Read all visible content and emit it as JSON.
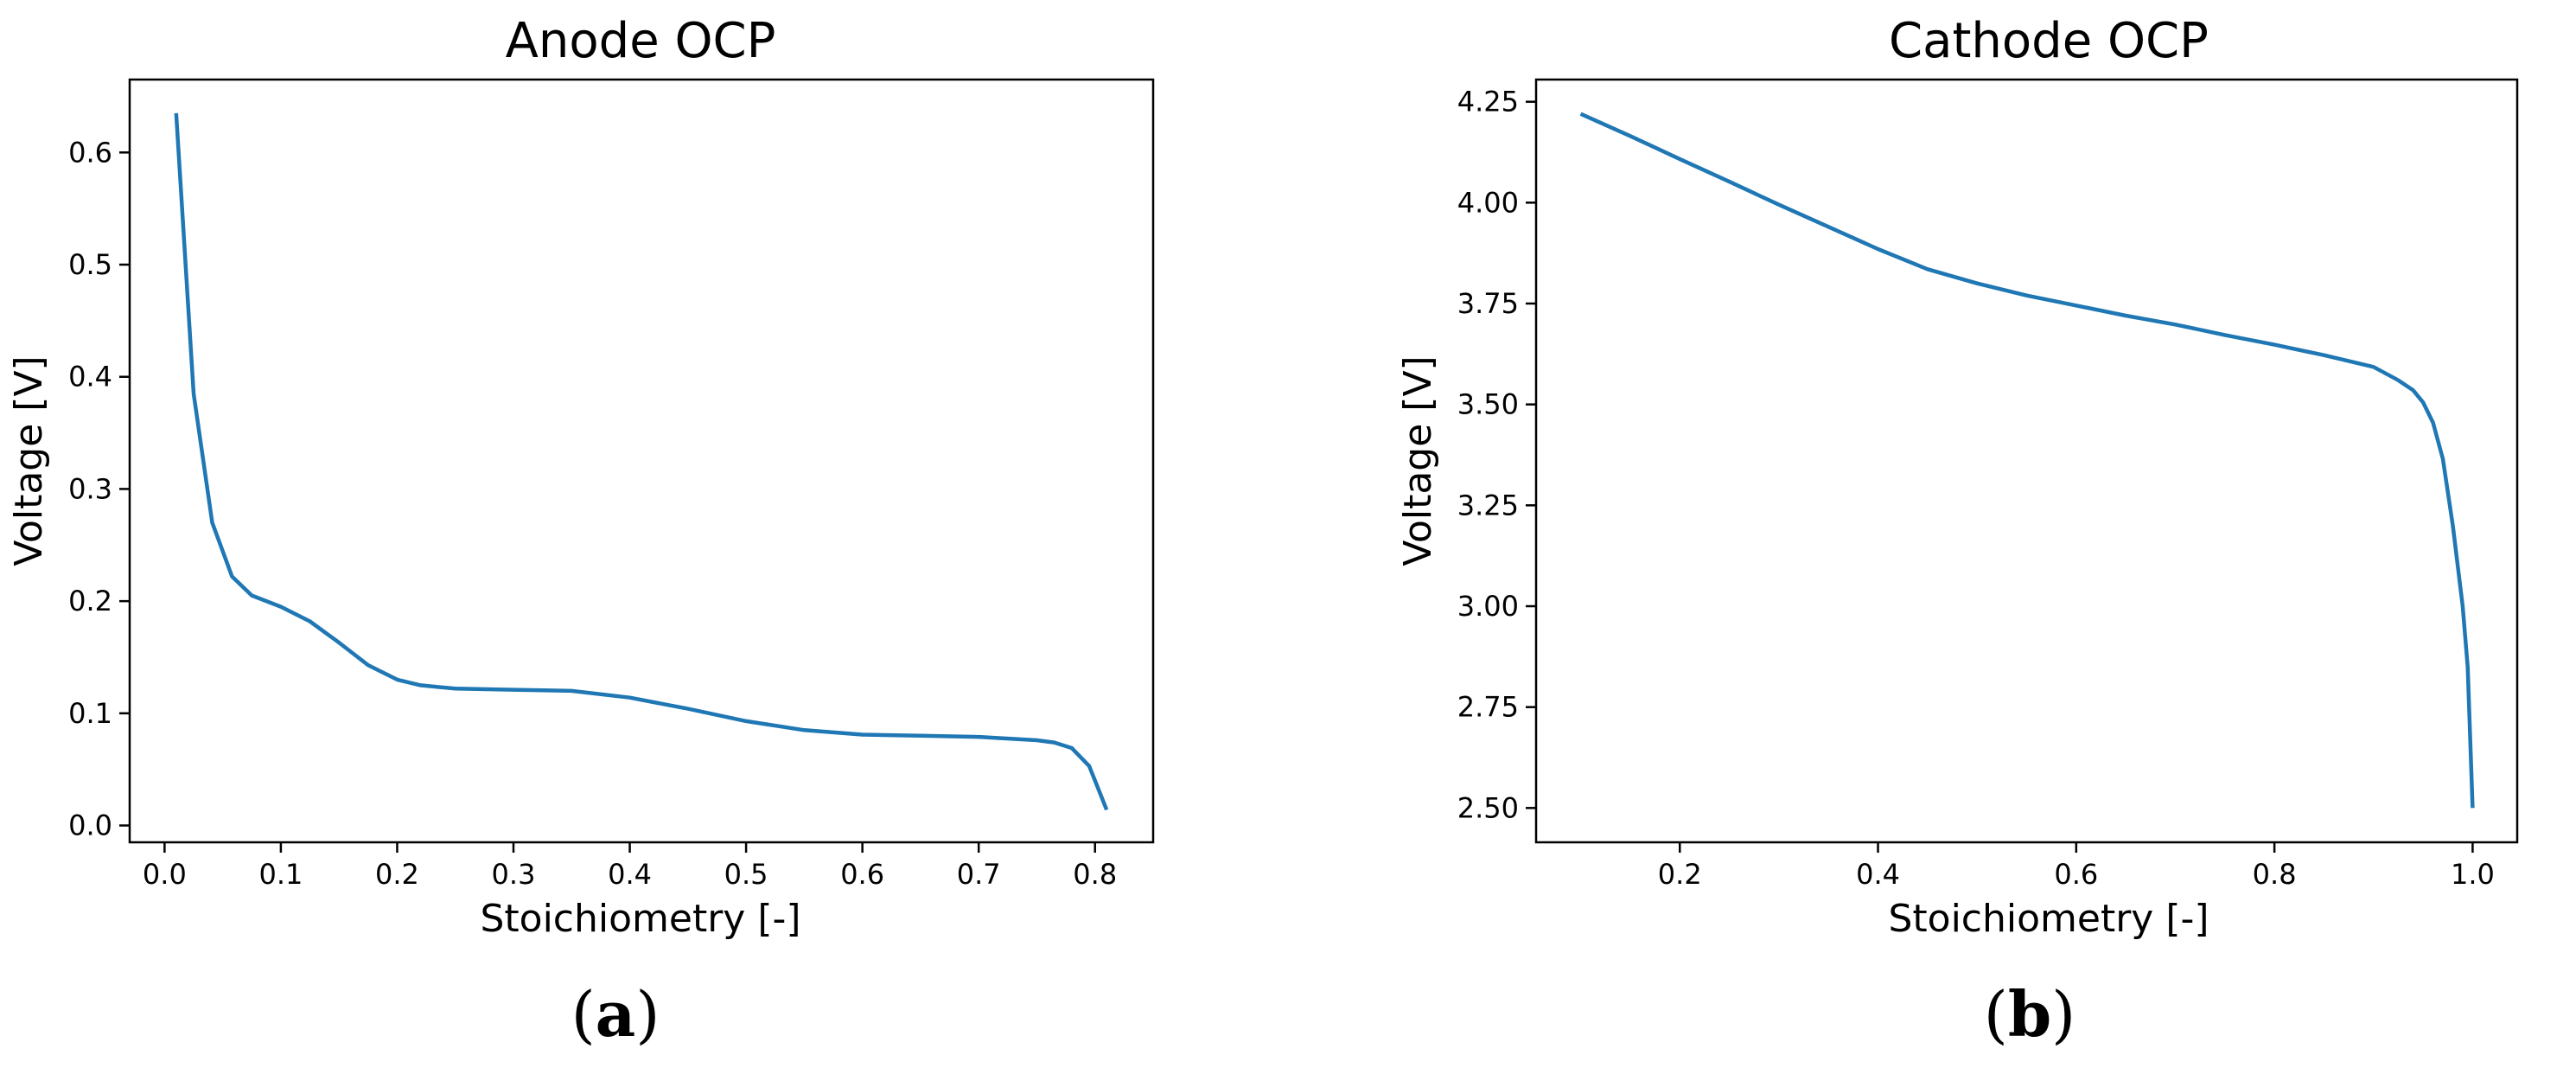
{
  "chart_data": [
    {
      "type": "line",
      "title": "Anode OCP",
      "xlabel": "Stoichiometry [-]",
      "ylabel": "Voltage [V]",
      "xlim": [
        -0.03,
        0.85
      ],
      "ylim": [
        -0.015,
        0.665
      ],
      "xticks": [
        0.0,
        0.1,
        0.2,
        0.3,
        0.4,
        0.5,
        0.6,
        0.7,
        0.8
      ],
      "xtick_labels": [
        "0.0",
        "0.1",
        "0.2",
        "0.3",
        "0.4",
        "0.5",
        "0.6",
        "0.7",
        "0.8"
      ],
      "yticks": [
        0.0,
        0.1,
        0.2,
        0.3,
        0.4,
        0.5,
        0.6
      ],
      "ytick_labels": [
        "0.0",
        "0.1",
        "0.2",
        "0.3",
        "0.4",
        "0.5",
        "0.6"
      ],
      "grid": false,
      "color": "#1f77b4",
      "panel_label": "a",
      "x": [
        0.01,
        0.025,
        0.041,
        0.058,
        0.075,
        0.1,
        0.125,
        0.15,
        0.175,
        0.2,
        0.22,
        0.25,
        0.3,
        0.35,
        0.4,
        0.45,
        0.5,
        0.55,
        0.6,
        0.65,
        0.7,
        0.75,
        0.765,
        0.78,
        0.795,
        0.81
      ],
      "y": [
        0.635,
        0.385,
        0.27,
        0.222,
        0.205,
        0.195,
        0.182,
        0.163,
        0.143,
        0.13,
        0.125,
        0.122,
        0.121,
        0.12,
        0.114,
        0.104,
        0.093,
        0.085,
        0.081,
        0.08,
        0.079,
        0.076,
        0.074,
        0.069,
        0.053,
        0.014
      ]
    },
    {
      "type": "line",
      "title": "Cathode OCP",
      "xlabel": "Stoichiometry [-]",
      "ylabel": "Voltage [V]",
      "xlim": [
        0.055,
        1.045
      ],
      "ylim": [
        2.415,
        4.305
      ],
      "xticks": [
        0.2,
        0.4,
        0.6,
        0.8,
        1.0
      ],
      "xtick_labels": [
        "0.2",
        "0.4",
        "0.6",
        "0.8",
        "1.0"
      ],
      "yticks": [
        2.5,
        2.75,
        3.0,
        3.25,
        3.5,
        3.75,
        4.0,
        4.25
      ],
      "ytick_labels": [
        "2.50",
        "2.75",
        "3.00",
        "3.25",
        "3.50",
        "3.75",
        "4.00",
        "4.25"
      ],
      "grid": false,
      "color": "#1f77b4",
      "panel_label": "b",
      "x": [
        0.1,
        0.15,
        0.2,
        0.25,
        0.3,
        0.35,
        0.4,
        0.45,
        0.5,
        0.55,
        0.6,
        0.65,
        0.7,
        0.75,
        0.8,
        0.85,
        0.9,
        0.925,
        0.94,
        0.95,
        0.96,
        0.97,
        0.98,
        0.99,
        0.995,
        1.0
      ],
      "y": [
        4.22,
        4.165,
        4.108,
        4.052,
        3.995,
        3.94,
        3.885,
        3.835,
        3.8,
        3.77,
        3.745,
        3.72,
        3.698,
        3.672,
        3.648,
        3.622,
        3.593,
        3.56,
        3.535,
        3.505,
        3.455,
        3.365,
        3.2,
        3.0,
        2.85,
        2.5
      ]
    }
  ]
}
